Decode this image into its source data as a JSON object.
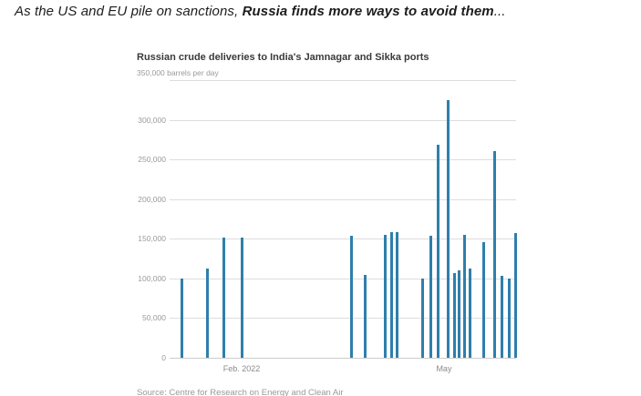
{
  "headline": {
    "prefix": "As the US and EU pile on sanctions, ",
    "bold": "Russia finds more ways to avoid them",
    "suffix": "..."
  },
  "chart_data": {
    "type": "bar",
    "title": "Russian crude deliveries to India's Jamnagar and Sikka ports",
    "unit_label": "barrels per day",
    "ylim": [
      0,
      350000
    ],
    "grid": true,
    "bar_color": "#2e7fab",
    "yticks": [
      {
        "value": 0,
        "label": "0"
      },
      {
        "value": 50000,
        "label": "50,000"
      },
      {
        "value": 100000,
        "label": "100,000"
      },
      {
        "value": 150000,
        "label": "150,000"
      },
      {
        "value": 200000,
        "label": "200,000"
      },
      {
        "value": 250000,
        "label": "250,000"
      },
      {
        "value": 300000,
        "label": "300,000"
      },
      {
        "value": 350000,
        "label": "350,000 barrels per day",
        "unit": true
      }
    ],
    "xticks": [
      {
        "x": 0.208,
        "label": "Feb. 2022"
      },
      {
        "x": 0.792,
        "label": "May"
      }
    ],
    "bars": [
      {
        "x": 0.032,
        "value": 100000
      },
      {
        "x": 0.105,
        "value": 112000
      },
      {
        "x": 0.153,
        "value": 152000
      },
      {
        "x": 0.205,
        "value": 152000
      },
      {
        "x": 0.521,
        "value": 154000
      },
      {
        "x": 0.561,
        "value": 104000
      },
      {
        "x": 0.618,
        "value": 155000
      },
      {
        "x": 0.637,
        "value": 158000
      },
      {
        "x": 0.653,
        "value": 158000
      },
      {
        "x": 0.726,
        "value": 100000
      },
      {
        "x": 0.75,
        "value": 154000
      },
      {
        "x": 0.771,
        "value": 268000
      },
      {
        "x": 0.8,
        "value": 325000
      },
      {
        "x": 0.818,
        "value": 107000
      },
      {
        "x": 0.832,
        "value": 110000
      },
      {
        "x": 0.847,
        "value": 155000
      },
      {
        "x": 0.863,
        "value": 112000
      },
      {
        "x": 0.903,
        "value": 146000
      },
      {
        "x": 0.934,
        "value": 261000
      },
      {
        "x": 0.955,
        "value": 103000
      },
      {
        "x": 0.976,
        "value": 100000
      },
      {
        "x": 0.995,
        "value": 157000
      }
    ],
    "source": "Source: Centre for Research on Energy and Clean Air"
  }
}
